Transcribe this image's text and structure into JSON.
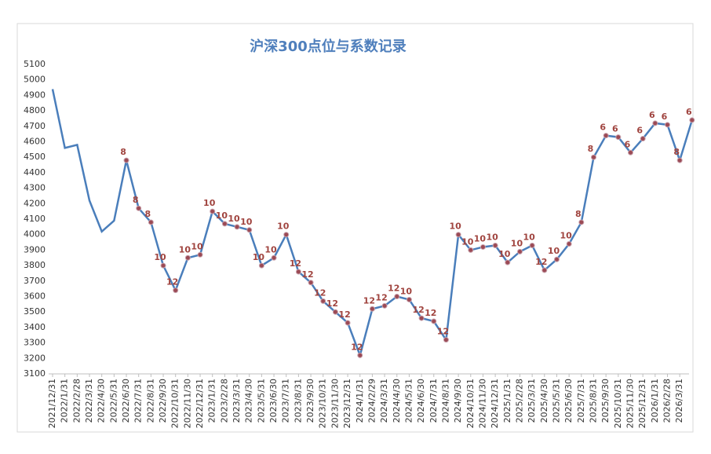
{
  "chart_data": {
    "type": "line",
    "title": "沪深300点位与系数记录",
    "categories": [
      "2021/12/31",
      "2022/1/31",
      "2022/2/28",
      "2022/3/31",
      "2022/4/30",
      "2022/5/31",
      "2022/6/30",
      "2022/7/31",
      "2022/8/31",
      "2022/9/30",
      "2022/10/31",
      "2022/11/30",
      "2022/12/31",
      "2023/1/31",
      "2023/2/28",
      "2023/3/31",
      "2023/4/30",
      "2023/5/31",
      "2023/6/30",
      "2023/7/31",
      "2023/8/31",
      "2023/9/30",
      "2023/10/31",
      "2023/11/30",
      "2023/12/31",
      "2024/1/31",
      "2024/2/29",
      "2024/3/31",
      "2024/4/30",
      "2024/5/31",
      "2024/6/30",
      "2024/7/31",
      "2024/8/31",
      "2024/9/30",
      "2024/10/31",
      "2024/11/30",
      "2024/12/31",
      "2025/1/31",
      "2025/2/28",
      "2025/3/31",
      "2025/4/30",
      "2025/5/31",
      "2025/6/30",
      "2025/7/31",
      "2025/8/31",
      "2025/9/30",
      "2025/10/31",
      "2025/11/30",
      "2025/12/31",
      "2026/1/31",
      "2026/2/28",
      "2026/3/31",
      null
    ],
    "values": [
      4940,
      4560,
      4580,
      4220,
      4020,
      4090,
      4480,
      4170,
      4080,
      3800,
      3640,
      3850,
      3870,
      4150,
      4070,
      4050,
      4030,
      3800,
      3850,
      4000,
      3760,
      3690,
      3570,
      3500,
      3430,
      3220,
      3520,
      3540,
      3600,
      3580,
      3460,
      3440,
      3320,
      4000,
      3900,
      3920,
      3930,
      3820,
      3890,
      3930,
      3770,
      3840,
      3940,
      4080,
      4500,
      4640,
      4630,
      4530,
      4620,
      4720,
      4710,
      4480,
      4740
    ],
    "coefficients": [
      null,
      null,
      null,
      null,
      null,
      null,
      8,
      8,
      8,
      10,
      12,
      10,
      10,
      10,
      10,
      10,
      10,
      10,
      10,
      10,
      12,
      12,
      12,
      12,
      12,
      12,
      12,
      12,
      12,
      10,
      12,
      12,
      12,
      10,
      10,
      10,
      10,
      10,
      10,
      10,
      12,
      10,
      10,
      8,
      8,
      6,
      6,
      6,
      6,
      6,
      6,
      8,
      6
    ],
    "line_color": "#4a7ebb",
    "marker_color": "#9b4a55",
    "ylim": [
      3100,
      5100
    ],
    "yticks": [
      3100,
      3200,
      3300,
      3400,
      3500,
      3600,
      3700,
      3800,
      3900,
      4000,
      4100,
      4200,
      4300,
      4400,
      4500,
      4600,
      4700,
      4800,
      4900,
      5000,
      5100
    ],
    "grid": false
  }
}
